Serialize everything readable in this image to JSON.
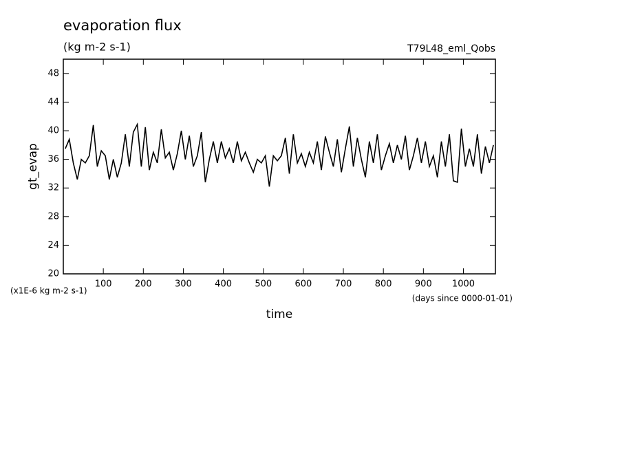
{
  "chart_data": {
    "type": "line",
    "title": "evaporation flux",
    "subtitle": "(kg m-2 s-1)",
    "run_label": "T79L48_eml_Qobs",
    "y_label": "gt_evap",
    "x_label": "time",
    "y_units_note": "(x1E-6 kg m-2 s-1)",
    "x_units_note": "(days since 0000-01-01)",
    "xlim": [
      0,
      1080
    ],
    "ylim": [
      20,
      50
    ],
    "xticks": [
      100,
      200,
      300,
      400,
      500,
      600,
      700,
      800,
      900,
      1000
    ],
    "yticks": [
      20,
      24,
      28,
      32,
      36,
      40,
      44,
      48
    ],
    "color": "#000000",
    "x": [
      5,
      15,
      25,
      35,
      45,
      55,
      65,
      75,
      85,
      95,
      105,
      115,
      125,
      135,
      145,
      155,
      165,
      175,
      185,
      195,
      205,
      215,
      225,
      235,
      245,
      255,
      265,
      275,
      285,
      295,
      305,
      315,
      325,
      335,
      345,
      355,
      365,
      375,
      385,
      395,
      405,
      415,
      425,
      435,
      445,
      455,
      465,
      475,
      485,
      495,
      505,
      515,
      525,
      535,
      545,
      555,
      565,
      575,
      585,
      595,
      605,
      615,
      625,
      635,
      645,
      655,
      665,
      675,
      685,
      695,
      705,
      715,
      725,
      735,
      745,
      755,
      765,
      775,
      785,
      795,
      805,
      815,
      825,
      835,
      845,
      855,
      865,
      875,
      885,
      895,
      905,
      915,
      925,
      935,
      945,
      955,
      965,
      975,
      985,
      995,
      1005,
      1015,
      1025,
      1035,
      1045,
      1055,
      1065,
      1075
    ],
    "values": [
      37.5,
      38.8,
      35.5,
      33.2,
      36,
      35.5,
      36.5,
      40.8,
      35,
      37.2,
      36.5,
      33.2,
      36,
      33.5,
      35.5,
      39.5,
      35,
      39.8,
      40.9,
      35,
      40.5,
      34.5,
      37,
      35.5,
      40.2,
      36.2,
      37,
      34.5,
      36.8,
      40,
      36,
      39.3,
      35,
      36.5,
      39.8,
      32.8,
      36,
      38.5,
      35.5,
      38.5,
      36.2,
      37.5,
      35.5,
      38.5,
      35.8,
      37,
      35.5,
      34.2,
      36,
      35.5,
      36.5,
      32.2,
      36.5,
      35.8,
      36.5,
      39,
      34,
      39.5,
      35.5,
      36.8,
      35,
      37,
      35.5,
      38.5,
      34.5,
      39.2,
      37,
      35,
      38.8,
      34.2,
      37.5,
      40.6,
      35,
      39,
      36,
      33.5,
      38.5,
      35.5,
      39.5,
      34.5,
      36.5,
      38.2,
      35.5,
      38,
      36,
      39.3,
      34.5,
      36.5,
      39,
      35.5,
      38.5,
      35,
      36.5,
      33.5,
      38.5,
      35,
      39.5,
      33,
      32.8,
      40.3,
      35,
      37.5,
      35,
      39.5,
      34,
      37.8,
      35.5,
      38
    ]
  }
}
